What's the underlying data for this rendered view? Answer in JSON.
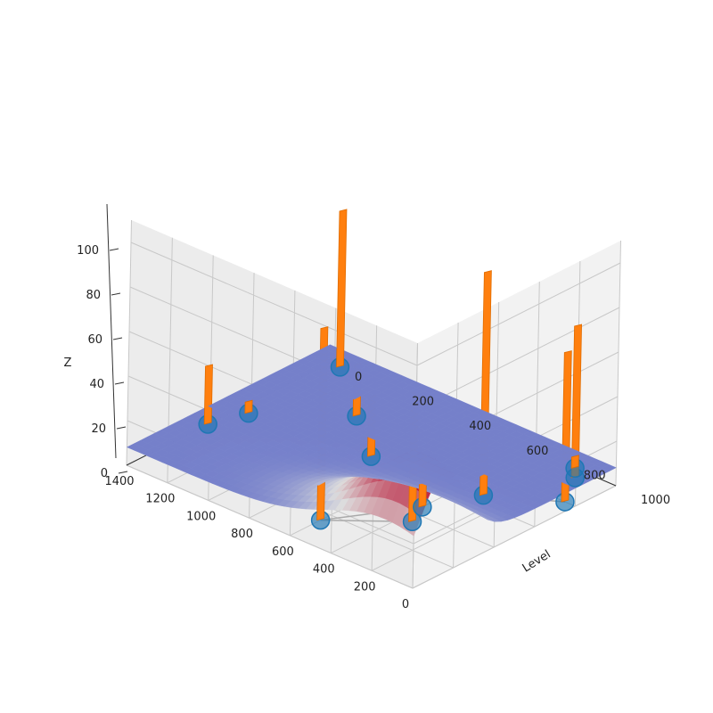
{
  "chart_data": {
    "type": "3d-bar-surface",
    "zlabel": "Z",
    "xlabel": "Level",
    "ylabel": "",
    "axis_level_ticks": [
      "0",
      "200",
      "400",
      "600",
      "800",
      "1000"
    ],
    "axis_depth_ticks": [
      "0",
      "200",
      "400",
      "600",
      "800",
      "1000",
      "1200",
      "1400"
    ],
    "axis_z_ticks": [
      "0",
      "20",
      "40",
      "60",
      "80",
      "100"
    ],
    "grid": true,
    "colors": {
      "bars": "#ff7f0e",
      "nodes": "#1f77b4",
      "edges": "#aaaaaa",
      "surface_low": "#3b4cc0",
      "surface_mid": "#dddddd",
      "surface_high": "#b40426",
      "pane": "#f2f2f2",
      "grid": "#c8c8c8"
    },
    "bars": [
      {
        "level": 150,
        "depth": 600,
        "z": 86
      },
      {
        "level": 350,
        "depth": 350,
        "z": 58
      },
      {
        "level": 450,
        "depth": 400,
        "z": 23
      },
      {
        "level": 650,
        "depth": 300,
        "z": 100
      },
      {
        "level": 600,
        "depth": 800,
        "z": 27
      },
      {
        "level": 800,
        "depth": 50,
        "z": 67
      },
      {
        "level": 400,
        "depth": 1400,
        "z": 26
      },
      {
        "level": 950,
        "depth": 150,
        "z": 68
      },
      {
        "level": 550,
        "depth": 1350,
        "z": 5
      },
      {
        "level": 780,
        "depth": 1050,
        "z": 23
      },
      {
        "level": 1000,
        "depth": 200,
        "z": 5
      },
      {
        "level": 1000,
        "depth": 1350,
        "z": 70
      }
    ],
    "nodes": [
      {
        "level": 150,
        "depth": 600,
        "z": 0
      },
      {
        "level": 350,
        "depth": 350,
        "z": 0
      },
      {
        "level": 450,
        "depth": 400,
        "z": 0
      },
      {
        "level": 650,
        "depth": 300,
        "z": 0
      },
      {
        "level": 600,
        "depth": 800,
        "z": 0
      },
      {
        "level": 800,
        "depth": 50,
        "z": 0
      },
      {
        "level": 400,
        "depth": 1400,
        "z": 0
      },
      {
        "level": 950,
        "depth": 150,
        "z": 0
      },
      {
        "level": 550,
        "depth": 1350,
        "z": 0
      },
      {
        "level": 780,
        "depth": 1050,
        "z": 0
      },
      {
        "level": 1000,
        "depth": 200,
        "z": 0
      },
      {
        "level": 1000,
        "depth": 1350,
        "z": 0
      }
    ],
    "edges": [
      [
        0,
        1
      ],
      [
        1,
        2
      ],
      [
        2,
        4
      ],
      [
        4,
        6
      ],
      [
        6,
        8
      ],
      [
        8,
        9
      ],
      [
        9,
        10
      ],
      [
        10,
        11
      ],
      [
        7,
        9
      ],
      [
        3,
        5
      ],
      [
        0,
        2
      ],
      [
        3,
        7
      ]
    ],
    "surface": {
      "level_range": [
        0,
        1000
      ],
      "depth_range": [
        0,
        1400
      ],
      "z_range": [
        0,
        45
      ],
      "resolution": [
        30,
        40
      ]
    }
  }
}
